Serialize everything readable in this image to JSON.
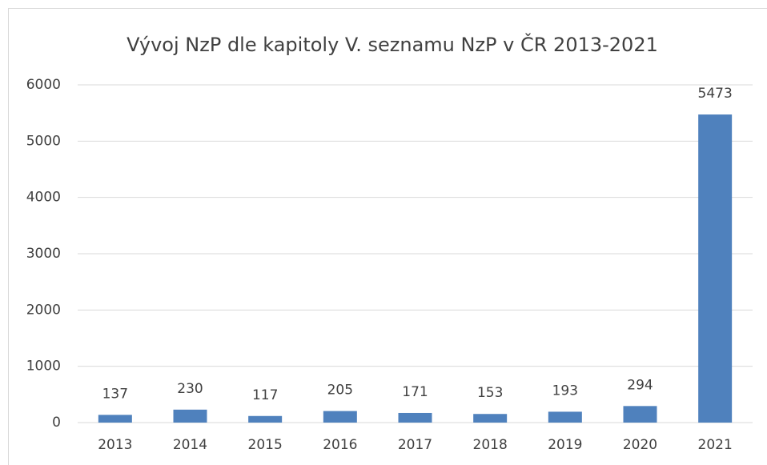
{
  "chart_data": {
    "type": "bar",
    "title": "Vývoj NzP dle kapitoly V. seznamu NzP v ČR 2013-2021",
    "categories": [
      "2013",
      "2014",
      "2015",
      "2016",
      "2017",
      "2018",
      "2019",
      "2020",
      "2021"
    ],
    "values": [
      137,
      230,
      117,
      205,
      171,
      153,
      193,
      294,
      5473
    ],
    "color": "#4f81bd",
    "ylim": [
      0,
      6000
    ],
    "yticks": [
      0,
      1000,
      2000,
      3000,
      4000,
      5000,
      6000
    ],
    "grid": true
  }
}
